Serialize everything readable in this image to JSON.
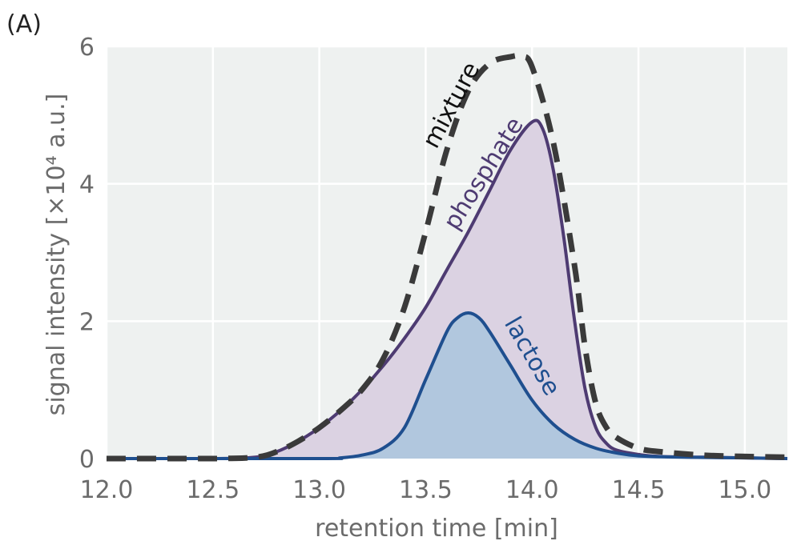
{
  "panel_label": "(A)",
  "colors": {
    "background": "#eef1f0",
    "grid": "#ffffff",
    "mixture": "#3a3a3a",
    "phosphate": "#4e3b72",
    "phosphate_fill": "#d9d0e0",
    "lactose": "#1f4f8f",
    "lactose_fill": "#afc6dd"
  },
  "chart_data": {
    "type": "area",
    "xlabel": "retention time [min]",
    "ylabel": "signal intensity [×10⁴ a.u.]",
    "xlim": [
      12.0,
      15.2
    ],
    "ylim": [
      0,
      6
    ],
    "xticks": [
      "12.0",
      "12.5",
      "13.0",
      "13.5",
      "14.0",
      "14.5",
      "15.0"
    ],
    "yticks": [
      "0",
      "2",
      "4",
      "6"
    ],
    "grid": true,
    "legend": "inline labels",
    "series": [
      {
        "name": "mixture",
        "style": "dashed",
        "x": [
          12.0,
          12.5,
          12.7,
          12.8,
          12.9,
          13.0,
          13.1,
          13.2,
          13.3,
          13.4,
          13.5,
          13.6,
          13.7,
          13.8,
          13.9,
          13.95,
          14.0,
          14.1,
          14.2,
          14.25,
          14.3,
          14.35,
          14.4,
          14.5,
          14.6,
          14.8,
          15.0,
          15.2
        ],
        "values": [
          0.0,
          0.0,
          0.02,
          0.1,
          0.25,
          0.45,
          0.7,
          1.0,
          1.45,
          2.2,
          3.3,
          4.5,
          5.35,
          5.75,
          5.85,
          5.85,
          5.7,
          4.6,
          2.8,
          1.6,
          0.8,
          0.45,
          0.3,
          0.15,
          0.1,
          0.05,
          0.03,
          0.02
        ]
      },
      {
        "name": "phosphate",
        "style": "filled",
        "x": [
          12.0,
          12.5,
          12.7,
          12.8,
          12.9,
          13.0,
          13.1,
          13.2,
          13.3,
          13.4,
          13.5,
          13.6,
          13.7,
          13.8,
          13.9,
          14.0,
          14.05,
          14.1,
          14.15,
          14.2,
          14.25,
          14.3,
          14.35,
          14.4,
          14.5,
          14.6,
          14.8,
          15.0,
          15.2
        ],
        "values": [
          0.0,
          0.0,
          0.02,
          0.1,
          0.25,
          0.45,
          0.7,
          1.0,
          1.35,
          1.75,
          2.2,
          2.75,
          3.3,
          3.9,
          4.5,
          4.9,
          4.8,
          4.2,
          3.2,
          2.0,
          1.0,
          0.45,
          0.22,
          0.12,
          0.06,
          0.03,
          0.02,
          0.01,
          0.0
        ]
      },
      {
        "name": "lactose",
        "style": "filled",
        "x": [
          12.0,
          13.0,
          13.1,
          13.2,
          13.3,
          13.4,
          13.5,
          13.6,
          13.65,
          13.7,
          13.75,
          13.8,
          13.9,
          14.0,
          14.1,
          14.2,
          14.3,
          14.4,
          14.5,
          14.7,
          15.0,
          15.2
        ],
        "values": [
          0.0,
          0.0,
          0.01,
          0.05,
          0.15,
          0.45,
          1.15,
          1.85,
          2.05,
          2.12,
          2.05,
          1.85,
          1.35,
          0.85,
          0.5,
          0.28,
          0.15,
          0.08,
          0.04,
          0.02,
          0.01,
          0.0
        ]
      }
    ]
  }
}
